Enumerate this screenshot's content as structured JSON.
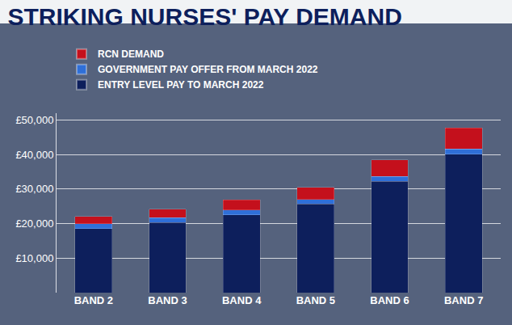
{
  "chart_data": {
    "type": "bar",
    "title": "STRIKING NURSES' PAY DEMAND",
    "stacked": true,
    "grid": true,
    "legend": "top-left",
    "categories": [
      "BAND 2",
      "BAND 3",
      "BAND 4",
      "BAND 5",
      "BAND 6",
      "BAND 7"
    ],
    "series": [
      {
        "name": "ENTRY LEVEL PAY TO MARCH 2022",
        "color": "#0d1f5c",
        "values": [
          18546,
          20330,
          22549,
          25655,
          32306,
          40057
        ]
      },
      {
        "name": "GOVERNMENT PAY OFFER FROM MARCH 2022",
        "color": "#2f6fd8",
        "values": [
          1400,
          1400,
          1400,
          1400,
          1400,
          1602
        ]
      },
      {
        "name": "RCN DEMAND",
        "color": "#c4101c",
        "values": [
          2124,
          2463,
          2884,
          3474,
          4738,
          6026
        ]
      }
    ],
    "ylim": [
      0,
      52000
    ],
    "yticks": [
      {
        "value": 10000,
        "label": "£10,000"
      },
      {
        "value": 20000,
        "label": "£20,000"
      },
      {
        "value": 30000,
        "label": "£30,000"
      },
      {
        "value": 40000,
        "label": "£40,000"
      },
      {
        "value": 50000,
        "label": "£50,000"
      }
    ]
  }
}
